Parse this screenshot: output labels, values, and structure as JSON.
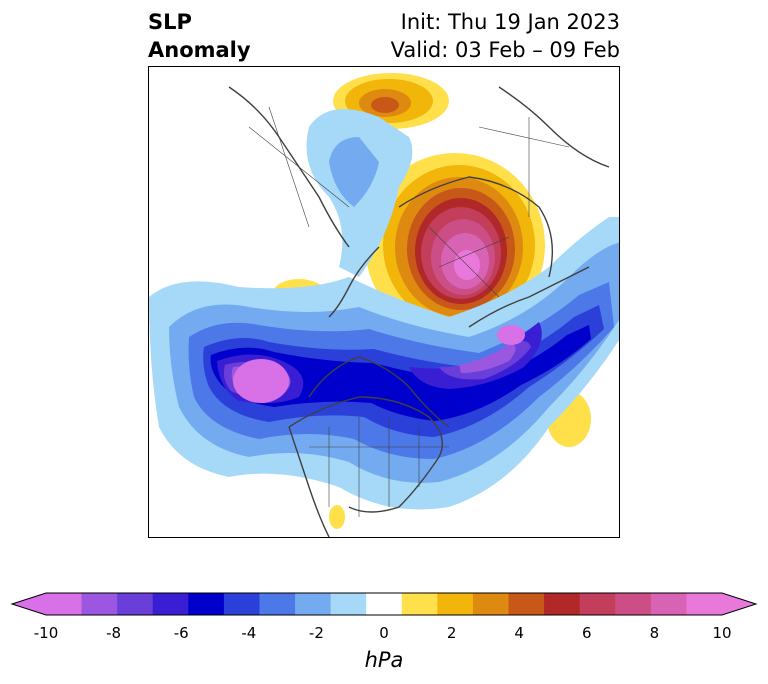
{
  "header": {
    "title_line1": "SLP",
    "title_line2": "Anomaly",
    "init_label": "Init: Thu 19 Jan 2023",
    "valid_label": "Valid: 03 Feb – 09 Feb"
  },
  "map": {
    "projection": "polar stereographic (North America / North Pole view)",
    "features": [
      "coastlines",
      "country borders",
      "state/province borders",
      "filled SLP anomaly contours"
    ],
    "anomaly_centers": [
      {
        "sign": "negative",
        "approx_min_hPa": -10,
        "location": "northeast Pacific"
      },
      {
        "sign": "negative",
        "approx_min_hPa": -9,
        "location": "northern Atlantic / Greenland-Scandinavia"
      },
      {
        "sign": "positive",
        "approx_max_hPa": 9,
        "location": "Siberian Arctic"
      },
      {
        "sign": "positive",
        "approx_max_hPa": 4,
        "location": "Arctic Ocean north of Scandinavia"
      },
      {
        "sign": "positive",
        "approx_max_hPa": 2,
        "location": "central Atlantic"
      }
    ]
  },
  "colorbar": {
    "units": "hPa",
    "extend": "both",
    "tick_labels": [
      "-10",
      "-8",
      "-6",
      "-4",
      "-2",
      "0",
      "2",
      "4",
      "6",
      "8",
      "10"
    ],
    "colors": [
      "#d870e8",
      "#9c57e0",
      "#6a3ed8",
      "#3a1ed4",
      "#0000cc",
      "#2a40d8",
      "#4d78e8",
      "#74aaf0",
      "#a6d8f8",
      "#ffffff",
      "#ffe04a",
      "#f2b50a",
      "#de8a10",
      "#c85818",
      "#b02828",
      "#c23e5a",
      "#cc4e86",
      "#d862b4",
      "#e878da"
    ]
  }
}
